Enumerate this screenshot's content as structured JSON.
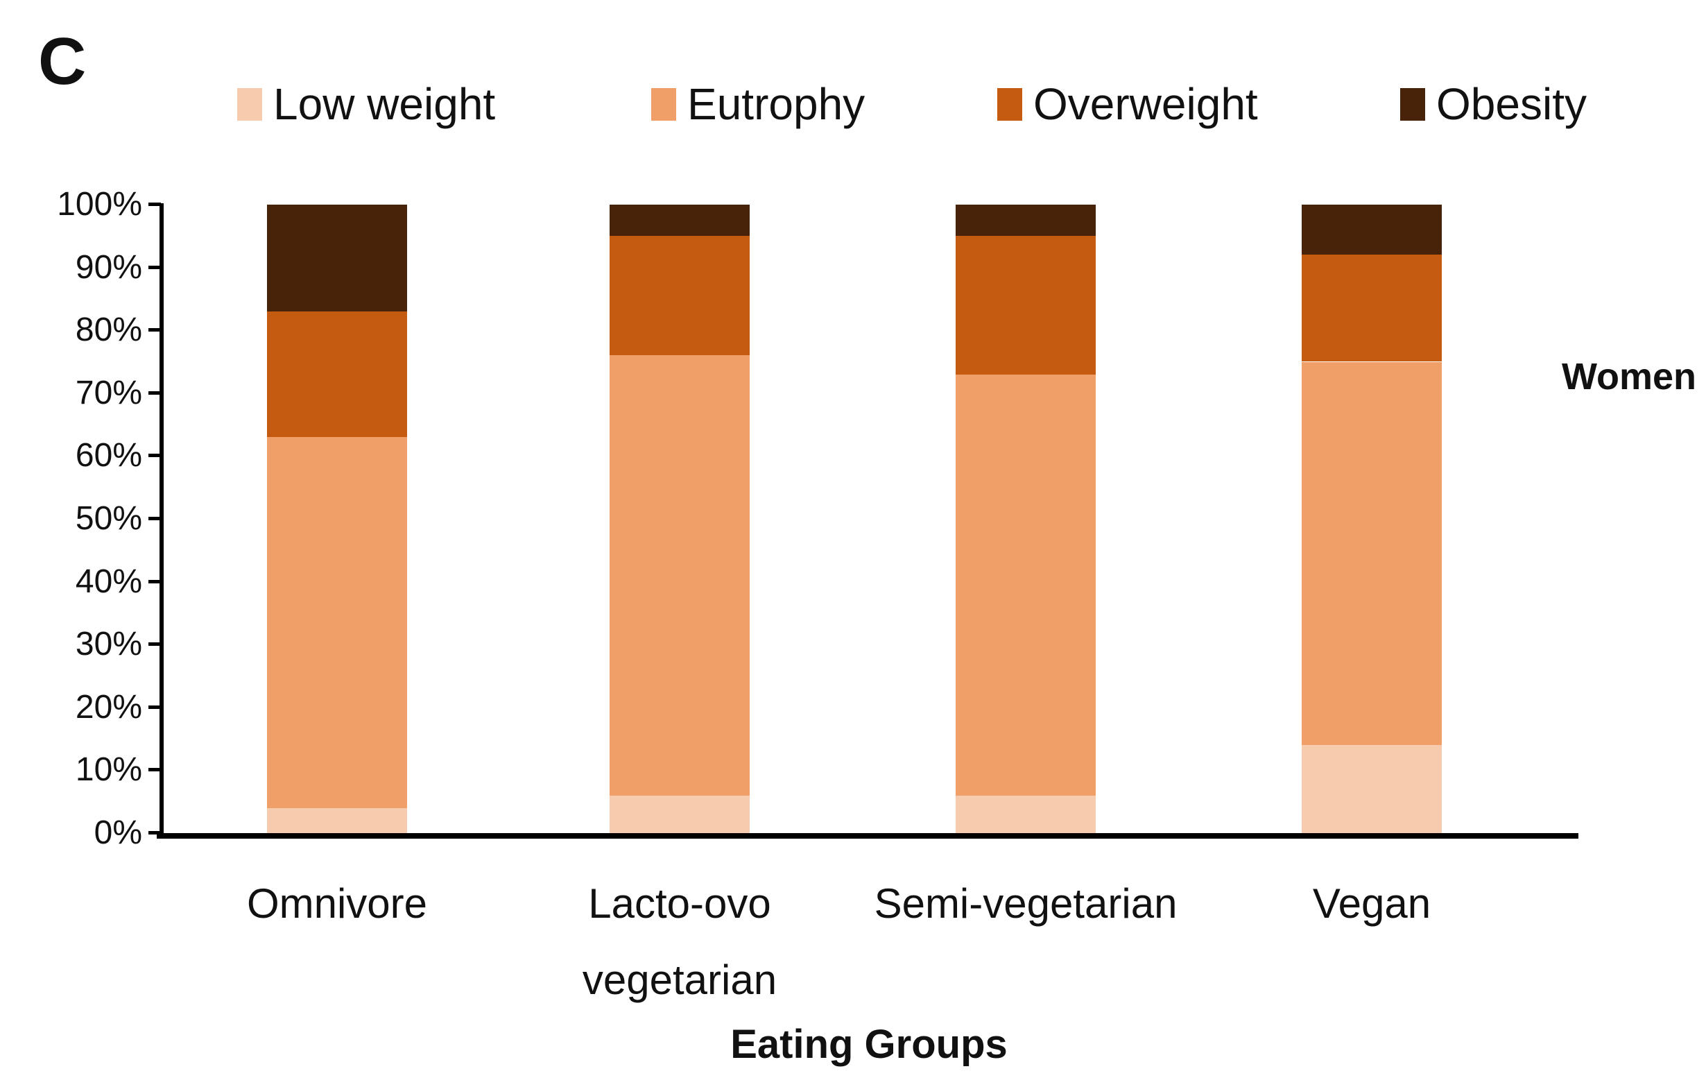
{
  "panel_label": "C",
  "side_label": "Women",
  "chart_data": {
    "type": "bar",
    "subtype": "stacked-100-percent",
    "title": "",
    "xlabel": "Eating Groups",
    "ylabel": "",
    "ylim": [
      0,
      100
    ],
    "grid": false,
    "legend_position": "top",
    "side_annotation": "Women",
    "categories": [
      "Omnivore",
      "Lacto-ovo\nvegetarian",
      "Semi-vegetarian",
      "Vegan"
    ],
    "y_ticks": [
      {
        "label": "0%",
        "value": 0
      },
      {
        "label": "10%",
        "value": 10
      },
      {
        "label": "20%",
        "value": 20
      },
      {
        "label": "30%",
        "value": 30
      },
      {
        "label": "40%",
        "value": 40
      },
      {
        "label": "50%",
        "value": 50
      },
      {
        "label": "60%",
        "value": 60
      },
      {
        "label": "70%",
        "value": 70
      },
      {
        "label": "80%",
        "value": 80
      },
      {
        "label": "90%",
        "value": 90
      },
      {
        "label": "100%",
        "value": 100
      }
    ],
    "series": [
      {
        "name": "Low weight",
        "color": "#F7CBAD",
        "values": [
          4,
          6,
          6,
          14
        ]
      },
      {
        "name": "Eutrophy",
        "color": "#F09F69",
        "values": [
          59,
          70,
          67,
          61
        ]
      },
      {
        "name": "Overweight",
        "color": "#C55A11",
        "values": [
          20,
          19,
          22,
          17
        ]
      },
      {
        "name": "Obesity",
        "color": "#48230A",
        "values": [
          17,
          5,
          5,
          8
        ]
      }
    ]
  }
}
